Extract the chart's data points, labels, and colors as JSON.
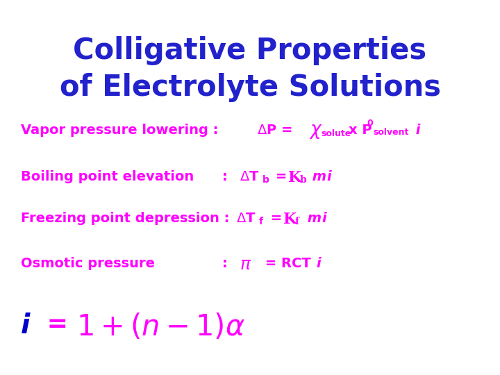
{
  "background_color": "#ffffff",
  "title_color": "#2222cc",
  "content_color": "#ff00ff",
  "title_color_last": "#0000dd",
  "figsize": [
    7.2,
    5.4
  ],
  "dpi": 100,
  "title1": "Colligative Properties",
  "title2": "of Electrolyte Solutions"
}
